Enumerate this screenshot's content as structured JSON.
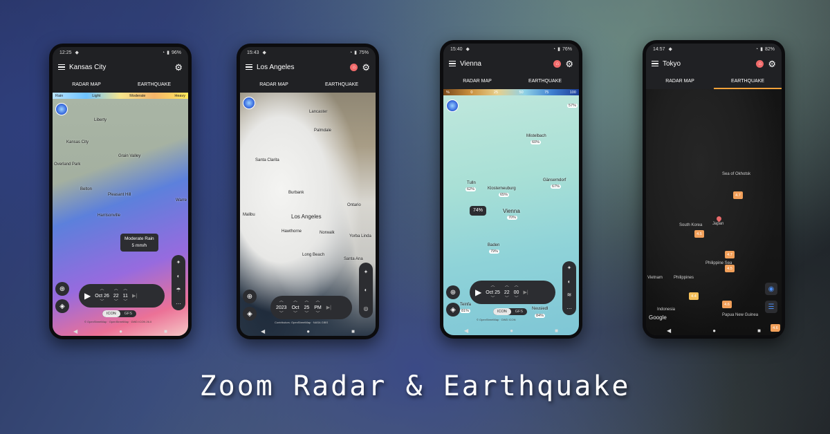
{
  "headline": "Zoom Radar & Earthquake",
  "tabs": {
    "radar": "RADAR MAP",
    "earthquake": "EARTHQUAKE"
  },
  "phones": {
    "kc": {
      "time": "12:25",
      "battery": "96%",
      "city": "Kansas City",
      "legend": [
        "Rain",
        "Light",
        "Moderate",
        "Heavy"
      ],
      "labels": [
        "Liberty",
        "Kansas City",
        "Grain Valley",
        "Overland Park",
        "Belton",
        "Pleasant Hill",
        "Harrisonville",
        "Warre"
      ],
      "tooltip_title": "Moderate Rain",
      "tooltip_value": "5 mm/h",
      "player": {
        "date": "Oct 26",
        "hour": "22",
        "minute": "11"
      },
      "models": [
        "ICON",
        "GFS"
      ],
      "attribution": "© OpenStreetMap · OpenStreetMap · DWD ICON 26.0"
    },
    "la": {
      "time": "15:43",
      "battery": "75%",
      "city": "Los Angeles",
      "labels": [
        "Lancaster",
        "Palmdale",
        "Santa Clarita",
        "Burbank",
        "Malibu",
        "Los Angeles",
        "Ontario",
        "Hawthorne",
        "Norwalk",
        "Yorba Linda",
        "Long Beach",
        "Santa Ana"
      ],
      "player": {
        "year": "2023",
        "month": "Oct",
        "day": "25",
        "ampm": "PM"
      },
      "attribution": "Contributors: OpenStreetMap · NASA GIBS"
    },
    "vienna": {
      "time": "15:40",
      "battery": "76%",
      "city": "Vienna",
      "legend": [
        "%",
        "0",
        "25",
        "50",
        "75",
        "100"
      ],
      "labels": [
        {
          "name": "Mistelbach",
          "pct": "60%"
        },
        {
          "name": "Tulln",
          "pct": "62%"
        },
        {
          "name": "Klosterneuburg",
          "pct": "65%"
        },
        {
          "name": "Gänserndorf",
          "pct": "67%"
        },
        {
          "name": "Vienna",
          "pct": "70%"
        },
        {
          "name": "Baden",
          "pct": "79%"
        },
        {
          "name": "Teinfa",
          "pct": "81%"
        },
        {
          "name": "Neusiedl",
          "pct": "84%"
        }
      ],
      "edge_pct": "57%",
      "callout": "74%",
      "player": {
        "date": "Oct 25",
        "hour": "22",
        "minute": "00"
      },
      "models": [
        "ICON",
        "GFS"
      ],
      "attribution": "© OpenStreetMap · DWD ICON"
    },
    "tokyo": {
      "time": "14:57",
      "battery": "82%",
      "city": "Tokyo",
      "labels": [
        "Sea of Okhotsk",
        "South Korea",
        "Japan",
        "Philippine Sea",
        "Vietnam",
        "Philippines",
        "Indonesia",
        "Papua New Guinea",
        "Google"
      ],
      "quakes": [
        "4.7",
        "4.5",
        "4.7",
        "4.5",
        "4.4",
        "4.6",
        "4.6"
      ]
    }
  },
  "colors": {
    "accent": "#f2a23a",
    "pin": "#e96a6a",
    "quake": "#f2a05a",
    "quake_light": "#f6c05a"
  }
}
